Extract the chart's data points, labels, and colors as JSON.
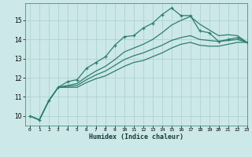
{
  "title": "",
  "xlabel": "Humidex (Indice chaleur)",
  "ylabel": "",
  "background_color": "#cce8e8",
  "line_color": "#2e7d6e",
  "grid_color": "#aacfcf",
  "xlim": [
    -0.5,
    23
  ],
  "ylim": [
    9.5,
    15.9
  ],
  "xticks": [
    0,
    1,
    2,
    3,
    4,
    5,
    6,
    7,
    8,
    9,
    10,
    11,
    12,
    13,
    14,
    15,
    16,
    17,
    18,
    19,
    20,
    21,
    22,
    23
  ],
  "yticks": [
    10,
    11,
    12,
    13,
    14,
    15
  ],
  "series": [
    {
      "x": [
        0,
        1,
        2,
        3,
        4,
        5,
        6,
        7,
        8,
        9,
        10,
        11,
        12,
        13,
        14,
        15,
        16,
        17,
        18,
        19,
        20,
        21,
        22,
        23
      ],
      "y": [
        10.0,
        9.8,
        10.8,
        11.5,
        11.8,
        11.9,
        12.5,
        12.8,
        13.1,
        13.7,
        14.15,
        14.2,
        14.6,
        14.85,
        15.3,
        15.65,
        15.25,
        15.25,
        14.45,
        14.35,
        13.9,
        14.0,
        14.1,
        13.85
      ],
      "marker": "+",
      "lw": 0.9
    },
    {
      "x": [
        0,
        1,
        2,
        3,
        4,
        5,
        6,
        7,
        8,
        9,
        10,
        11,
        12,
        13,
        14,
        15,
        16,
        17,
        18,
        19,
        20,
        21,
        22,
        23
      ],
      "y": [
        10.0,
        9.8,
        10.8,
        11.5,
        11.5,
        11.5,
        11.75,
        11.95,
        12.1,
        12.35,
        12.6,
        12.8,
        12.9,
        13.1,
        13.3,
        13.55,
        13.75,
        13.85,
        13.7,
        13.65,
        13.65,
        13.75,
        13.85,
        13.85
      ],
      "marker": null,
      "lw": 0.9
    },
    {
      "x": [
        0,
        1,
        2,
        3,
        4,
        5,
        6,
        7,
        8,
        9,
        10,
        11,
        12,
        13,
        14,
        15,
        16,
        17,
        18,
        19,
        20,
        21,
        22,
        23
      ],
      "y": [
        10.0,
        9.8,
        10.8,
        11.5,
        11.55,
        11.6,
        11.9,
        12.15,
        12.35,
        12.65,
        12.95,
        13.15,
        13.3,
        13.5,
        13.7,
        13.95,
        14.1,
        14.2,
        14.0,
        13.95,
        13.9,
        13.95,
        14.0,
        13.85
      ],
      "marker": null,
      "lw": 0.9
    },
    {
      "x": [
        0,
        1,
        2,
        3,
        4,
        5,
        6,
        7,
        8,
        9,
        10,
        11,
        12,
        13,
        14,
        15,
        16,
        17,
        18,
        19,
        20,
        21,
        22,
        23
      ],
      "y": [
        10.0,
        9.8,
        10.8,
        11.5,
        11.6,
        11.7,
        12.05,
        12.35,
        12.6,
        12.95,
        13.35,
        13.55,
        13.75,
        14.0,
        14.35,
        14.75,
        15.0,
        15.2,
        14.8,
        14.5,
        14.2,
        14.25,
        14.2,
        13.85
      ],
      "marker": null,
      "lw": 0.9
    }
  ]
}
